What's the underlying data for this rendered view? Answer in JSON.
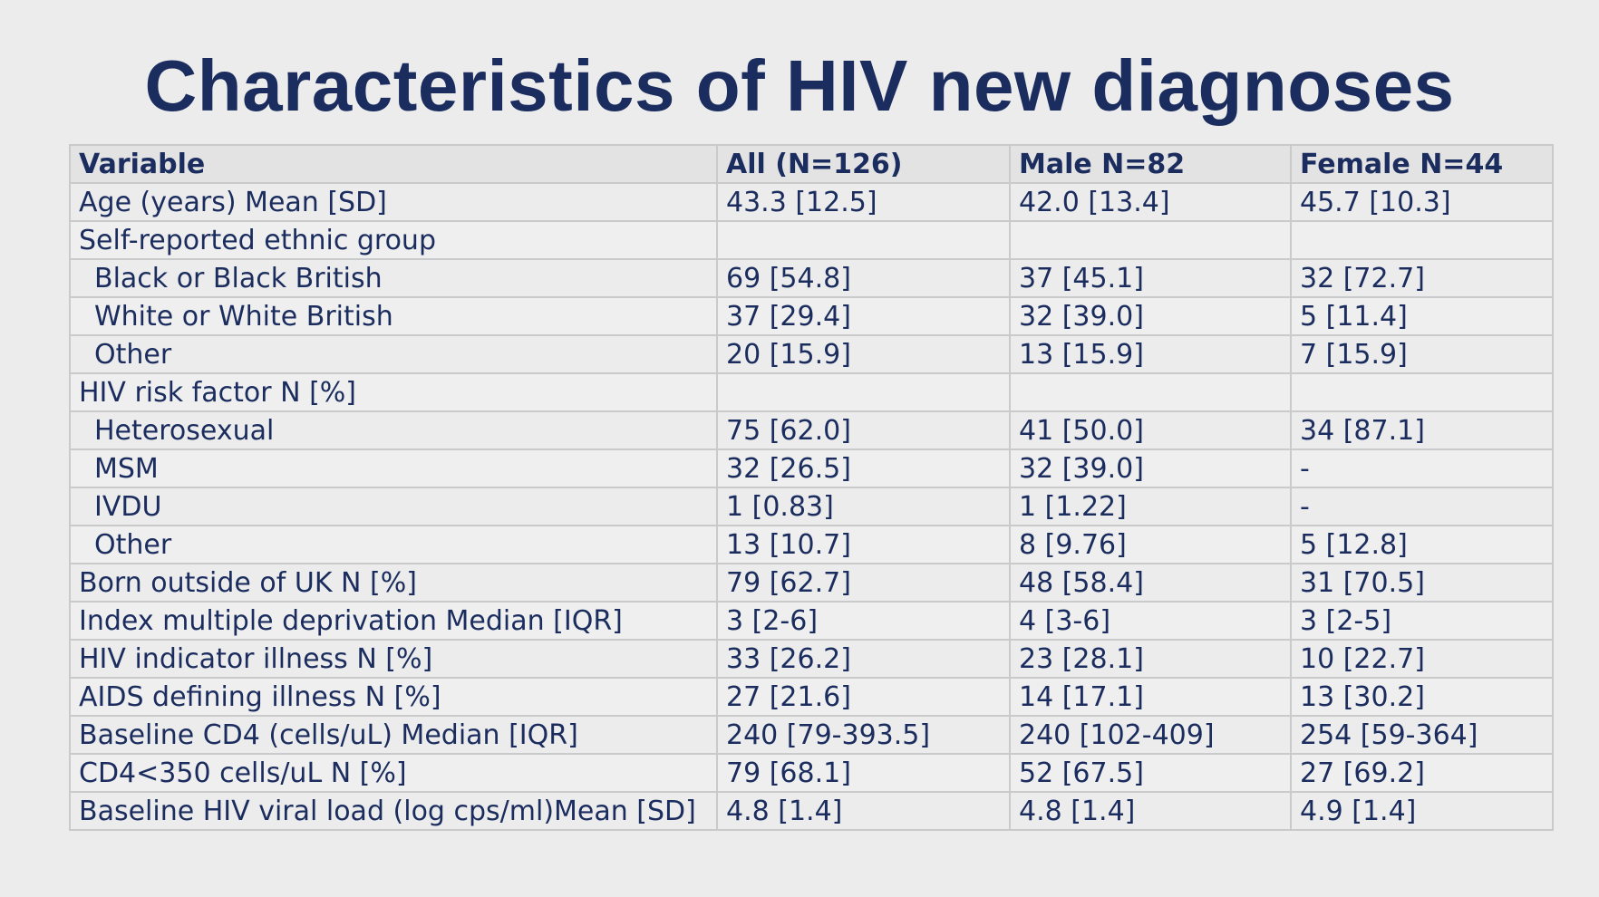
{
  "title": "Characteristics of HIV new diagnoses",
  "table": {
    "headers": [
      "Variable",
      "All (N=126)",
      "Male N=82",
      "Female N=44"
    ],
    "rows": [
      {
        "cells": [
          "Age (years) Mean [SD]",
          "43.3 [12.5]",
          "42.0 [13.4]",
          "45.7 [10.3]"
        ],
        "indent": false
      },
      {
        "cells": [
          "Self-reported ethnic group",
          "",
          "",
          ""
        ],
        "indent": false
      },
      {
        "cells": [
          "Black or Black British",
          "69 [54.8]",
          "37 [45.1]",
          "32 [72.7]"
        ],
        "indent": true
      },
      {
        "cells": [
          "White or White British",
          "37 [29.4]",
          "32 [39.0]",
          "5 [11.4]"
        ],
        "indent": true
      },
      {
        "cells": [
          "Other",
          "20 [15.9]",
          "13 [15.9]",
          "7 [15.9]"
        ],
        "indent": true
      },
      {
        "cells": [
          "HIV risk factor N [%]",
          "",
          "",
          ""
        ],
        "indent": false
      },
      {
        "cells": [
          "Heterosexual",
          "75 [62.0]",
          "41 [50.0]",
          "34 [87.1]"
        ],
        "indent": true
      },
      {
        "cells": [
          "MSM",
          "32 [26.5]",
          "32 [39.0]",
          "-"
        ],
        "indent": true
      },
      {
        "cells": [
          "IVDU",
          "1 [0.83]",
          "1 [1.22]",
          "-"
        ],
        "indent": true
      },
      {
        "cells": [
          "Other",
          "13 [10.7]",
          "8 [9.76]",
          "5 [12.8]"
        ],
        "indent": true
      },
      {
        "cells": [
          "Born outside of UK N [%]",
          "79 [62.7]",
          "48 [58.4]",
          "31 [70.5]"
        ],
        "indent": false
      },
      {
        "cells": [
          "Index multiple deprivation Median [IQR]",
          "3 [2-6]",
          "4 [3-6]",
          "3 [2-5]"
        ],
        "indent": false
      },
      {
        "cells": [
          "HIV indicator illness N [%]",
          "33 [26.2]",
          "23 [28.1]",
          "10 [22.7]"
        ],
        "indent": false
      },
      {
        "cells": [
          "AIDS defining illness N [%]",
          "27 [21.6]",
          "14 [17.1]",
          "13 [30.2]"
        ],
        "indent": false
      },
      {
        "cells": [
          "Baseline CD4 (cells/uL) Median [IQR]",
          "240 [79-393.5]",
          "240 [102-409]",
          "254 [59-364]"
        ],
        "indent": false
      },
      {
        "cells": [
          "CD4<350 cells/uL N [%]",
          "79 [68.1]",
          "52 [67.5]",
          "27 [69.2]"
        ],
        "indent": false
      },
      {
        "cells": [
          "Baseline HIV viral load (log cps/ml)Mean [SD]",
          "4.8 [1.4]",
          "4.8 [1.4]",
          "4.9 [1.4]"
        ],
        "indent": false
      }
    ]
  },
  "colors": {
    "text": "#1b2d5e",
    "background": "#ececec",
    "grid": "#c9cacb"
  }
}
